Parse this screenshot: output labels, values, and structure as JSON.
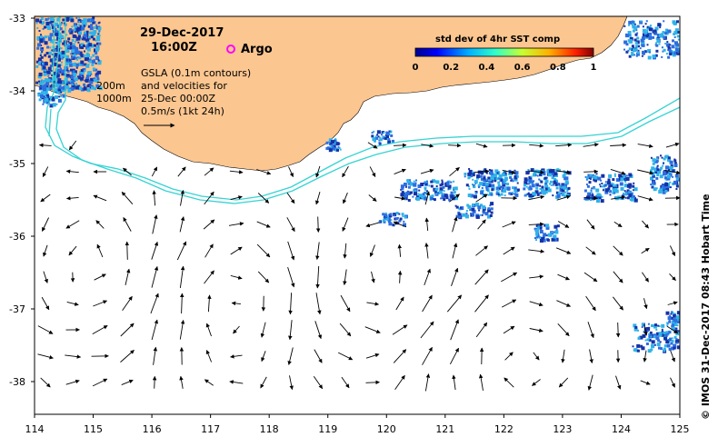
{
  "map": {
    "date": "29-Dec-2017",
    "time": "16:00Z",
    "argo_label": "Argo",
    "depth_label_1": "200m",
    "depth_label_2": "1000m",
    "gsla_lines": [
      "GSLA (0.1m contours)",
      "and velocities for",
      "25-Dec 00:00Z",
      "0.5m/s (1kt 24h)"
    ],
    "credit": "© IMOS 31-Dec-2017 08:43 Hobart Time",
    "lon_ticks": [
      "114",
      "115",
      "116",
      "117",
      "118",
      "119",
      "120",
      "121",
      "122",
      "123",
      "124",
      "125"
    ],
    "lat_ticks": [
      "-33",
      "-34",
      "-35",
      "-36",
      "-37",
      "-38"
    ]
  },
  "colorbar": {
    "title": "std dev of 4hr SST comp",
    "ticks": [
      "0",
      "0.2",
      "0.4",
      "0.6",
      "0.8",
      "1"
    ]
  },
  "colors": {
    "land": "#fbc690",
    "isobath": "#35d3d3",
    "argo": "#ff00ff",
    "sst_dark": "#1432a8",
    "sst_mid": "#2c6ee0",
    "sst_light": "#2fb3e8"
  }
}
